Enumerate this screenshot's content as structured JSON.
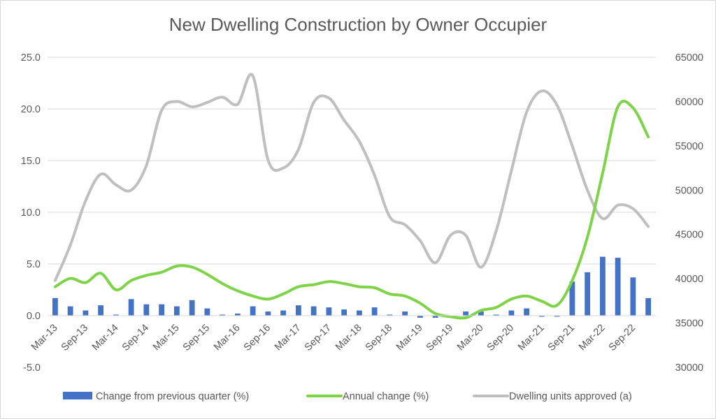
{
  "chart_data": {
    "type": "bar",
    "title": "New Dwelling Construction by Owner Occupier",
    "categories": [
      "Mar-13",
      "Jun-13",
      "Sep-13",
      "Dec-13",
      "Mar-14",
      "Jun-14",
      "Sep-14",
      "Dec-14",
      "Mar-15",
      "Jun-15",
      "Sep-15",
      "Dec-15",
      "Mar-16",
      "Jun-16",
      "Sep-16",
      "Dec-16",
      "Mar-17",
      "Jun-17",
      "Sep-17",
      "Dec-17",
      "Mar-18",
      "Jun-18",
      "Sep-18",
      "Dec-18",
      "Mar-19",
      "Jun-19",
      "Sep-19",
      "Dec-19",
      "Mar-20",
      "Jun-20",
      "Sep-20",
      "Dec-20",
      "Mar-21",
      "Jun-21",
      "Sep-21",
      "Dec-21",
      "Mar-22",
      "Jun-22",
      "Sep-22",
      "Dec-22"
    ],
    "x_tick_labels": [
      "Mar-13",
      "Sep-13",
      "Mar-14",
      "Sep-14",
      "Mar-15",
      "Sep-15",
      "Mar-16",
      "Sep-16",
      "Mar-17",
      "Sep-17",
      "Mar-18",
      "Sep-18",
      "Mar-19",
      "Sep-19",
      "Mar-20",
      "Sep-20",
      "Mar-21",
      "Sep-21",
      "Mar-22",
      "Sep-22"
    ],
    "y_left": {
      "ylim": [
        -5,
        25
      ],
      "ticks": [
        "-5.0",
        "0.0",
        "5.0",
        "10.0",
        "15.0",
        "20.0",
        "25.0"
      ]
    },
    "y_right": {
      "ylim": [
        30000,
        65000
      ],
      "ticks": [
        "30000",
        "35000",
        "40000",
        "45000",
        "50000",
        "55000",
        "60000",
        "65000"
      ]
    },
    "series": [
      {
        "name": "Change from previous quarter (%)",
        "type": "bar",
        "axis": "left",
        "color": "#4472c4",
        "values": [
          1.7,
          0.9,
          0.5,
          1.0,
          0.1,
          1.6,
          1.1,
          1.1,
          0.9,
          1.5,
          0.7,
          0.1,
          0.2,
          0.9,
          0.4,
          0.5,
          1.0,
          0.9,
          0.8,
          0.6,
          0.5,
          0.8,
          0.1,
          0.4,
          -0.2,
          -0.2,
          0.0,
          0.4,
          0.4,
          0.1,
          0.5,
          0.7,
          -0.1,
          -0.1,
          3.3,
          4.2,
          5.7,
          5.6,
          3.7,
          1.7
        ]
      },
      {
        "name": "Annual change (%)",
        "type": "line",
        "axis": "left",
        "color": "#7ed348",
        "values": [
          2.8,
          3.6,
          3.2,
          4.1,
          2.5,
          3.4,
          3.9,
          4.2,
          4.8,
          4.7,
          4.0,
          3.1,
          2.4,
          1.9,
          1.6,
          2.1,
          2.8,
          3.0,
          3.3,
          3.1,
          2.8,
          2.7,
          2.1,
          1.9,
          1.2,
          0.2,
          -0.1,
          -0.2,
          0.5,
          0.8,
          1.6,
          1.9,
          1.4,
          1.0,
          3.4,
          7.6,
          13.8,
          20.2,
          20.1,
          17.3
        ]
      },
      {
        "name": "Dwelling units approved (a)",
        "type": "line",
        "axis": "right",
        "color": "#bfbfbf",
        "values": [
          39800,
          43800,
          48800,
          51800,
          50600,
          50000,
          52800,
          59000,
          60000,
          59400,
          59900,
          60500,
          59700,
          62900,
          53400,
          52500,
          54600,
          59900,
          60400,
          57900,
          55500,
          51700,
          47000,
          46100,
          44300,
          41800,
          44900,
          44900,
          41300,
          45400,
          52200,
          58800,
          61200,
          59600,
          55000,
          50000,
          46800,
          48300,
          47900,
          45900
        ]
      }
    ]
  }
}
